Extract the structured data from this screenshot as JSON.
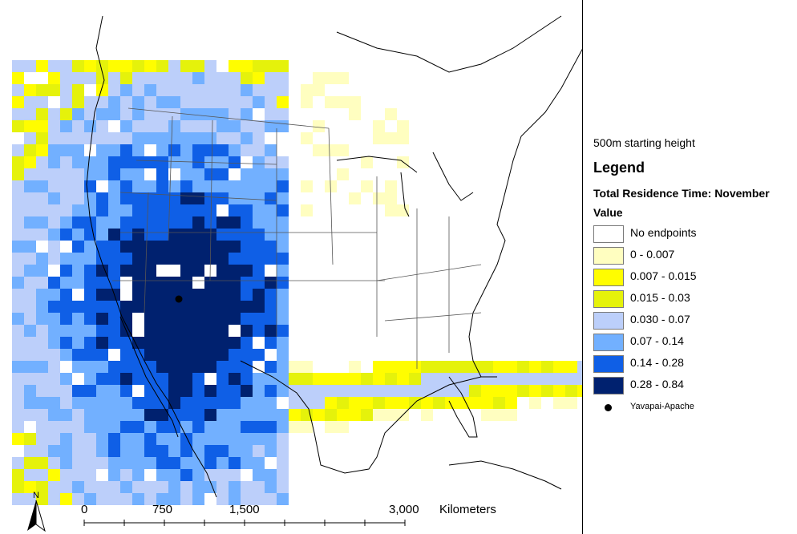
{
  "legend": {
    "subtitle": "500m starting height",
    "title": "Legend",
    "layer_title": "Total Residence Time: November",
    "value_heading": "Value",
    "classes": [
      {
        "label": "No endpoints",
        "color": "#ffffff"
      },
      {
        "label": "0 - 0.007",
        "color": "#fffec0"
      },
      {
        "label": "0.007 - 0.015",
        "color": "#fffd00"
      },
      {
        "label": "0.015 - 0.03",
        "color": "#e5f20b"
      },
      {
        "label": "0.030 - 0.07",
        "color": "#bccffa"
      },
      {
        "label": "0.07 - 0.14",
        "color": "#72b0ff"
      },
      {
        "label": "0.14 - 0.28",
        "color": "#0f5fe6"
      },
      {
        "label": "0.28 - 0.84",
        "color": "#00216f"
      }
    ],
    "site": {
      "label": "Yavapai-Apache",
      "icon": "black-dot"
    }
  },
  "scale_bar": {
    "ticks": [
      "0",
      "750",
      "1,500",
      "3,000"
    ],
    "unit": "Kilometers"
  },
  "north_arrow": {
    "label": "N"
  }
}
